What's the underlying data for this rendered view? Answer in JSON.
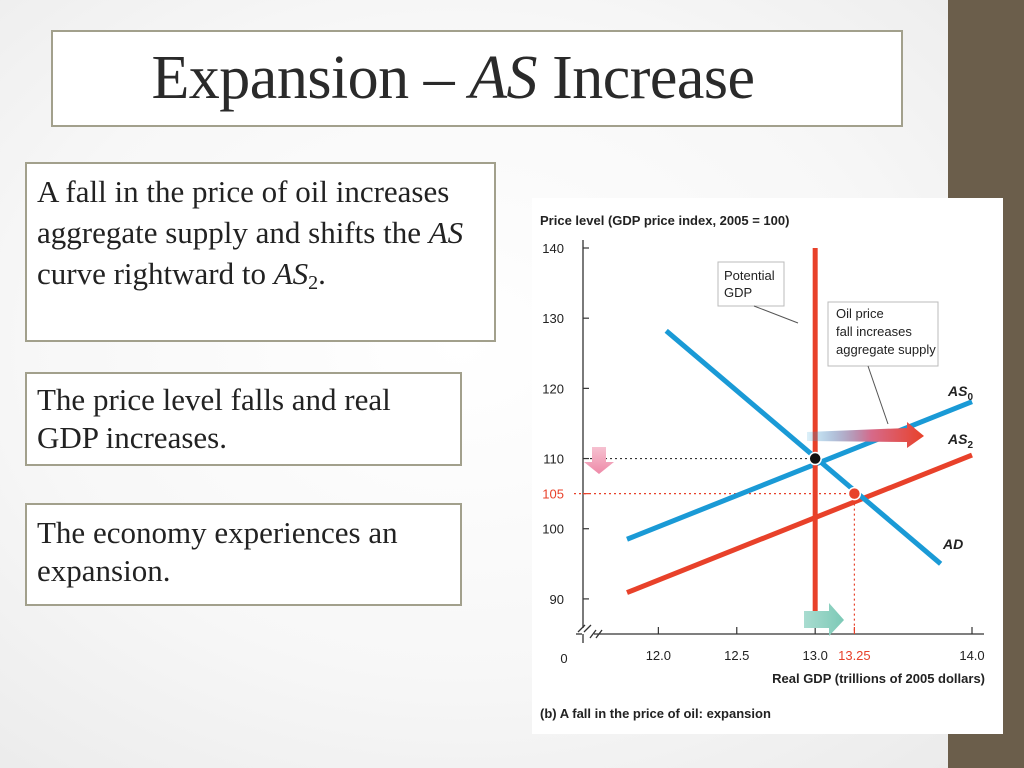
{
  "slide": {
    "title_prefix": "Expansion – ",
    "title_italic": "AS",
    "title_suffix": " Increase",
    "box1": {
      "t1": "A fall in the price of oil increases aggregate supply and shifts the ",
      "t2": "AS",
      "t3": " curve rightward to ",
      "t4": "AS",
      "t5": "2",
      "t6": "."
    },
    "box2": "The price level falls and real GDP increases.",
    "box3": "The economy experiences an expansion."
  },
  "chart_data": {
    "type": "line",
    "ylabel": "Price level (GDP price index, 2005 = 100)",
    "xlabel": "Real GDP (trillions of 2005 dollars)",
    "caption": "(b) A fall in the price of oil: expansion",
    "x_ticks": [
      "12.0",
      "12.5",
      "13.0",
      "13.25",
      "14.0"
    ],
    "x_tick_values": [
      12.0,
      12.5,
      13.0,
      13.25,
      14.0
    ],
    "y_ticks": [
      "90",
      "100",
      "105",
      "110",
      "120",
      "130",
      "140"
    ],
    "y_tick_values": [
      90,
      100,
      105,
      110,
      120,
      130,
      140
    ],
    "origin_label": "0",
    "xlim": [
      11.8,
      14.0
    ],
    "ylim": [
      85,
      140
    ],
    "series": [
      {
        "name": "AS",
        "sub": "0",
        "color": "#1a9ad6",
        "x": [
          11.8,
          14.0
        ],
        "y": [
          98.5,
          118.1
        ]
      },
      {
        "name": "AS",
        "sub": "2",
        "color": "#e8412a",
        "x": [
          11.8,
          14.0
        ],
        "y": [
          90.9,
          110.5
        ]
      },
      {
        "name": "AD",
        "sub": "",
        "color": "#1a9ad6",
        "x": [
          12.05,
          13.8
        ],
        "y": [
          128.2,
          95.0
        ]
      },
      {
        "name": "Potential GDP",
        "sub": "",
        "color": "#e8412a",
        "x": [
          13.0,
          13.0
        ],
        "y": [
          87,
          140
        ]
      }
    ],
    "equilibria": [
      {
        "x": 13.0,
        "y": 110,
        "color": "#111111"
      },
      {
        "x": 13.25,
        "y": 105,
        "color": "#e8412a"
      }
    ],
    "annotations": {
      "potential": [
        "Potential",
        "GDP"
      ],
      "oil": [
        "Oil price",
        "fall increases",
        "aggregate supply"
      ]
    },
    "highlight_color": "#e8412a"
  }
}
